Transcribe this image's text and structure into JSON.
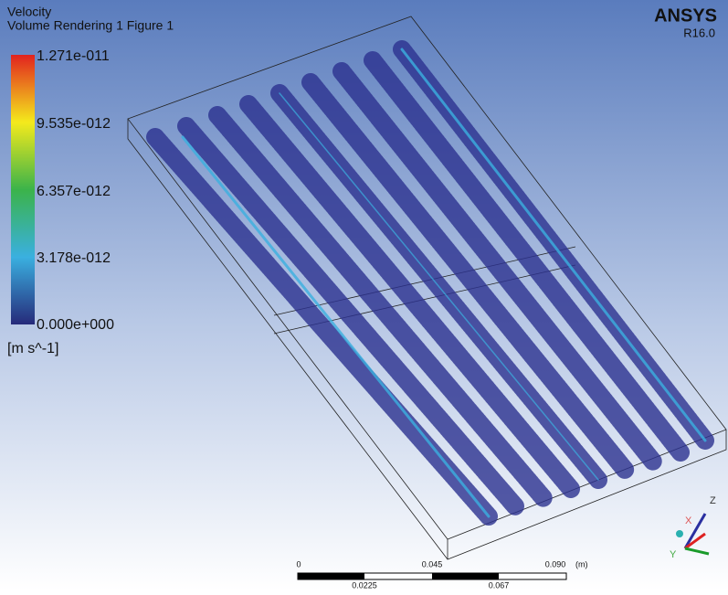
{
  "legend": {
    "title": "Velocity",
    "subtitle": "Volume Rendering 1 Figure 1",
    "labels": [
      "1.271e-011",
      "9.535e-012",
      "6.357e-012",
      "3.178e-012",
      "0.000e+000"
    ],
    "units": "[m s^-1]"
  },
  "logo": {
    "name": "ANSYS",
    "version": "R16.0"
  },
  "scale_bar": {
    "top_labels": [
      "0",
      "0.045",
      "0.090"
    ],
    "unit": "(m)",
    "bottom_labels": [
      "0.0225",
      "0.067"
    ]
  },
  "axes": {
    "z": "Z",
    "x": "X",
    "y": "Y"
  }
}
